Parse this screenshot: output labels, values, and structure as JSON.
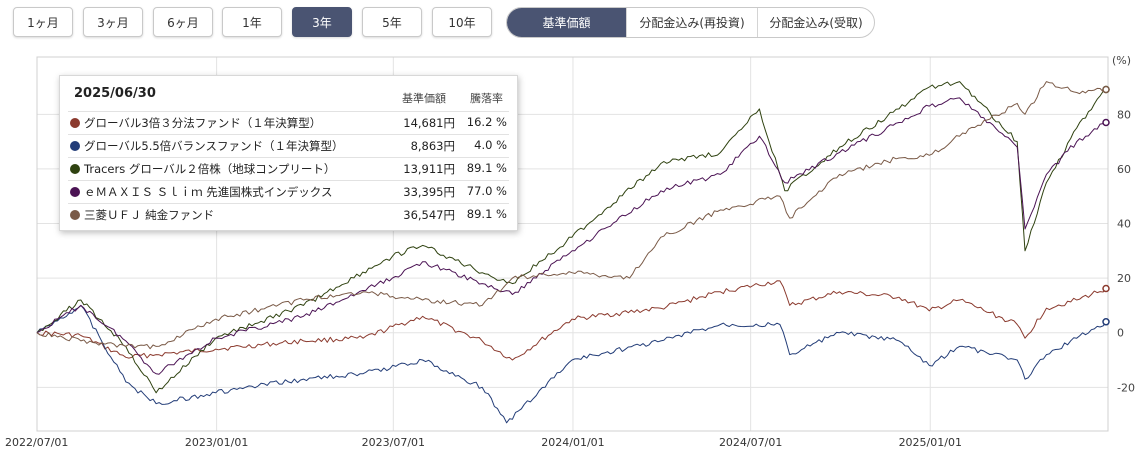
{
  "period_buttons": [
    {
      "label": "1ヶ月",
      "active": false
    },
    {
      "label": "3ヶ月",
      "active": false
    },
    {
      "label": "6ヶ月",
      "active": false
    },
    {
      "label": "1年",
      "active": false
    },
    {
      "label": "3年",
      "active": true
    },
    {
      "label": "5年",
      "active": false
    },
    {
      "label": "10年",
      "active": false
    }
  ],
  "mode_tabs": [
    {
      "label": "基準価額",
      "active": true
    },
    {
      "label": "分配金込み(再投資)",
      "active": false
    },
    {
      "label": "分配金込み(受取)",
      "active": false
    }
  ],
  "tooltip": {
    "date": "2025/06/30",
    "col_price": "基準価額",
    "col_change": "騰落率",
    "rows": [
      {
        "name": "グローバル3倍３分法ファンド（１年決算型）",
        "price": "14,681円",
        "change": "16.2 %",
        "color": "#8b3a2e"
      },
      {
        "name": "グローバル5.5倍バランスファンド（１年決算型）",
        "price": "8,863円",
        "change": "4.0 %",
        "color": "#233d78"
      },
      {
        "name": "Tracers グローバル２倍株（地球コンプリート）",
        "price": "13,911円",
        "change": "89.1 %",
        "color": "#2f4210"
      },
      {
        "name": "ｅＭＡＸＩＳ Ｓｌｉｍ 先進国株式インデックス",
        "price": "33,395円",
        "change": "77.0 %",
        "color": "#4b1354"
      },
      {
        "name": "三菱ＵＦＪ 純金ファンド",
        "price": "36,547円",
        "change": "89.1 %",
        "color": "#7a5a47"
      }
    ]
  },
  "chart_data": {
    "type": "line",
    "y_unit": "(%)",
    "ylim": [
      -36,
      101
    ],
    "xlim": [
      "2022/07/01",
      "2025/06/30"
    ],
    "x_ticks": [
      "2022/07/01",
      "2023/01/01",
      "2023/07/01",
      "2024/01/01",
      "2024/07/01",
      "2025/01/01"
    ],
    "y_ticks": [
      -20,
      0,
      20,
      40,
      60,
      80
    ],
    "grid": true,
    "series": [
      {
        "name": "グローバル3倍３分法ファンド（１年決算型）",
        "color": "#8b3a2e",
        "x": [
          "2022/07/01",
          "2022/08/15",
          "2022/09/30",
          "2022/10/31",
          "2022/12/31",
          "2023/03/31",
          "2023/05/31",
          "2023/07/31",
          "2023/09/30",
          "2023/10/31",
          "2023/12/31",
          "2024/03/31",
          "2024/05/31",
          "2024/07/31",
          "2024/08/10",
          "2024/09/30",
          "2024/11/30",
          "2024/12/31",
          "2025/01/31",
          "2025/03/31",
          "2025/04/08",
          "2025/04/30",
          "2025/05/31",
          "2025/06/30"
        ],
        "values": [
          0,
          -1,
          -9,
          -8,
          -6,
          -3,
          -2,
          6,
          -3,
          -10,
          5,
          9,
          15,
          19,
          10,
          15,
          13,
          8,
          12,
          3,
          -2,
          9,
          12,
          16.2
        ]
      },
      {
        "name": "グローバル5.5倍バランスファンド（１年決算型）",
        "color": "#233d78",
        "x": [
          "2022/07/01",
          "2022/08/15",
          "2022/09/30",
          "2022/10/31",
          "2022/12/31",
          "2023/03/31",
          "2023/05/31",
          "2023/07/31",
          "2023/09/30",
          "2023/10/25",
          "2023/12/31",
          "2024/03/31",
          "2024/05/31",
          "2024/07/31",
          "2024/08/10",
          "2024/09/30",
          "2024/11/30",
          "2024/12/31",
          "2025/01/31",
          "2025/03/31",
          "2025/04/08",
          "2025/04/30",
          "2025/05/31",
          "2025/06/30"
        ],
        "values": [
          0,
          10,
          -18,
          -26,
          -22,
          -17,
          -15,
          -10,
          -20,
          -33,
          -10,
          -3,
          3,
          3,
          -8,
          0,
          -3,
          -12,
          -5,
          -10,
          -17,
          -8,
          -2,
          4.0
        ]
      },
      {
        "name": "Tracers グローバル２倍株（地球コンプリート）",
        "color": "#2f4210",
        "x": [
          "2022/07/01",
          "2022/08/15",
          "2022/09/30",
          "2022/10/31",
          "2022/12/31",
          "2023/03/31",
          "2023/06/30",
          "2023/07/31",
          "2023/09/30",
          "2023/10/31",
          "2023/12/31",
          "2024/03/31",
          "2024/05/31",
          "2024/07/10",
          "2024/08/05",
          "2024/09/30",
          "2024/11/30",
          "2024/12/31",
          "2025/01/31",
          "2025/03/31",
          "2025/04/08",
          "2025/04/30",
          "2025/05/31",
          "2025/06/30"
        ],
        "values": [
          0,
          12,
          -5,
          -22,
          -2,
          10,
          28,
          32,
          22,
          18,
          35,
          62,
          66,
          82,
          52,
          68,
          82,
          90,
          92,
          70,
          30,
          55,
          75,
          89.1
        ]
      },
      {
        "name": "ｅＭＡＸＩＳ Ｓｌｉｍ 先進国株式インデックス",
        "color": "#4b1354",
        "x": [
          "2022/07/01",
          "2022/08/15",
          "2022/09/30",
          "2022/10/31",
          "2022/12/31",
          "2023/03/31",
          "2023/06/30",
          "2023/07/31",
          "2023/09/30",
          "2023/10/31",
          "2023/12/31",
          "2024/03/31",
          "2024/05/31",
          "2024/07/10",
          "2024/08/05",
          "2024/09/30",
          "2024/11/30",
          "2024/12/31",
          "2025/01/31",
          "2025/03/31",
          "2025/04/08",
          "2025/04/30",
          "2025/05/31",
          "2025/06/30"
        ],
        "values": [
          0,
          10,
          -3,
          -15,
          -2,
          6,
          20,
          26,
          18,
          14,
          30,
          52,
          58,
          72,
          55,
          66,
          77,
          83,
          86,
          68,
          38,
          58,
          70,
          77.0
        ]
      },
      {
        "name": "三菱ＵＦＪ 純金ファンド",
        "color": "#7a5a47",
        "x": [
          "2022/07/01",
          "2022/08/15",
          "2022/09/30",
          "2022/10/31",
          "2022/12/31",
          "2023/03/31",
          "2023/05/31",
          "2023/07/31",
          "2023/09/30",
          "2023/10/31",
          "2023/12/31",
          "2024/02/28",
          "2024/03/31",
          "2024/05/31",
          "2024/07/31",
          "2024/08/10",
          "2024/09/30",
          "2024/11/30",
          "2024/12/31",
          "2025/01/31",
          "2025/03/31",
          "2025/04/08",
          "2025/04/30",
          "2025/05/31",
          "2025/06/30"
        ],
        "values": [
          0,
          -3,
          -5,
          -5,
          5,
          12,
          15,
          12,
          10,
          20,
          22,
          20,
          35,
          45,
          50,
          42,
          58,
          64,
          65,
          72,
          84,
          80,
          92,
          88,
          89.1
        ]
      }
    ]
  }
}
